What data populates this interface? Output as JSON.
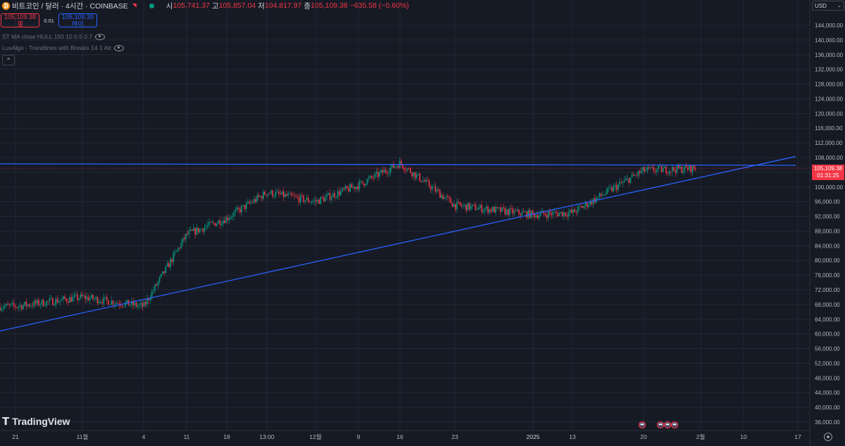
{
  "header": {
    "symbol": "비트코인 / 달러 · 4시간 · COINBASE",
    "open_label": "시",
    "open": "105,741.37",
    "high_label": "고",
    "high": "105,857.04",
    "low_label": "저",
    "low": "104,817.97",
    "close_label": "종",
    "close": "105,109.38",
    "change": "−635.58 (−0.60%)"
  },
  "trade": {
    "sell_price": "105,109.38",
    "sell_label": "셀",
    "spread": "0.01",
    "buy_price": "105,109.39",
    "buy_label": "바이"
  },
  "indicators": [
    "ST MA close HULL 150 10 0.5 0.7",
    "LuxAlgo - Trendlines with Breaks 14 1 Atr"
  ],
  "currency": "USD",
  "price_label": {
    "price": "105,109.38",
    "countdown": "01:31:25"
  },
  "logo_text": "TradingView",
  "colors": {
    "background": "#161a25",
    "up": "#089981",
    "down": "#f23645",
    "trendline": "#2962ff"
  },
  "chart_data": {
    "type": "candlestick",
    "y_scale": "linear",
    "ylim": [
      34000,
      148500
    ],
    "y_ticks": [
      "144,000.00",
      "140,000.00",
      "136,000.00",
      "132,000.00",
      "128,000.00",
      "124,000.00",
      "120,000.00",
      "116,000.00",
      "112,000.00",
      "108,000.00",
      "104,000.00",
      "100,000.00",
      "96,000.00",
      "92,000.00",
      "88,000.00",
      "84,000.00",
      "80,000.00",
      "76,000.00",
      "72,000.00",
      "68,000.00",
      "64,000.00",
      "60,000.00",
      "56,000.00",
      "52,000.00",
      "48,000.00",
      "44,000.00",
      "40,000.00",
      "36,000.00"
    ],
    "x_ticks": [
      "21",
      "11월",
      "4",
      "11",
      "18",
      "13:00",
      "12월",
      "9",
      "16",
      "23",
      "2025",
      "13",
      "20",
      "2월",
      "10",
      "17"
    ],
    "grid": true,
    "series": [
      {
        "type": "candles",
        "path": [
          [
            "21",
            67500
          ],
          [
            "11월",
            70000
          ],
          [
            "4",
            67500
          ],
          [
            "11",
            87000
          ],
          [
            "18",
            91500
          ],
          [
            "13:00",
            98500
          ],
          [
            "12월",
            96000
          ],
          [
            "9",
            100500
          ],
          [
            "16",
            106500
          ],
          [
            "23",
            95000
          ],
          [
            "2025",
            92500
          ],
          [
            "13",
            93000
          ],
          [
            "20",
            104500
          ],
          [
            "2월",
            105109
          ]
        ]
      },
      {
        "type": "trendline",
        "label": "resistance",
        "start": [
          "21",
          106300
        ],
        "end": [
          "17",
          105900
        ]
      },
      {
        "type": "trendline",
        "label": "support",
        "start": [
          "21",
          60800
        ],
        "end": [
          "17",
          108300
        ]
      }
    ],
    "last_price": 105109.38
  }
}
